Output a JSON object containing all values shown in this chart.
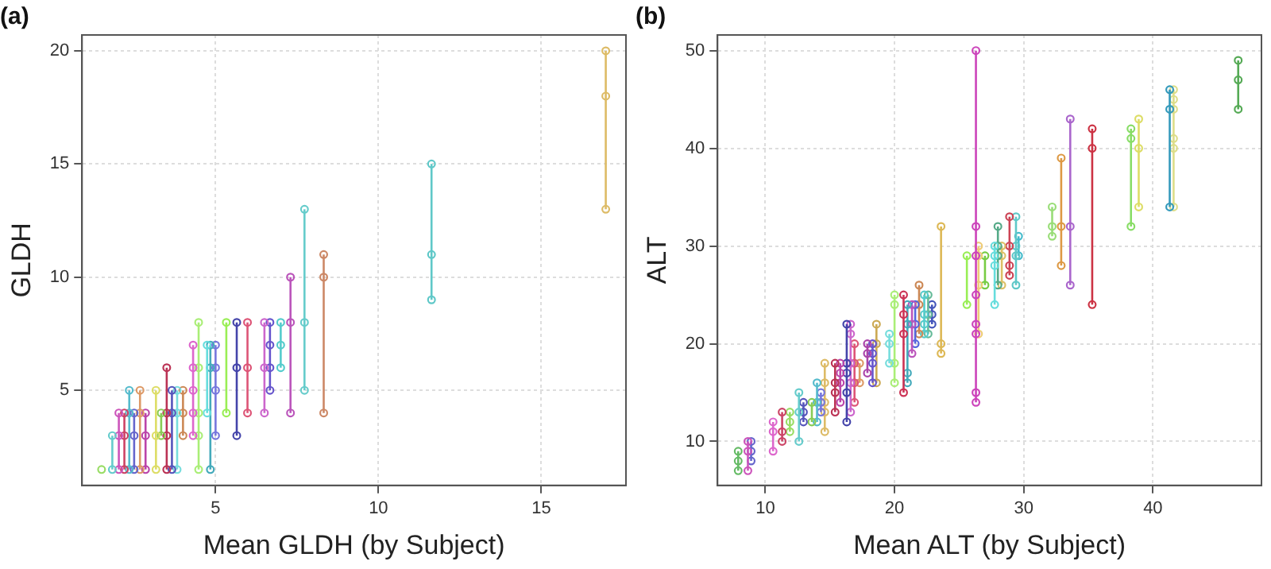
{
  "chart_data": [
    {
      "type": "line",
      "title": "(a)",
      "xlabel": "Mean GLDH (by Subject)",
      "ylabel": "GLDH",
      "xlim": [
        0.9,
        17.6
      ],
      "xticks": [
        5,
        10,
        15
      ],
      "ylim": [
        0.8,
        20.7
      ],
      "yticks": [
        5,
        10,
        15,
        20
      ],
      "grid": true,
      "marker": "circle",
      "line_style": "solid",
      "series": [
        {
          "color": "#99dd66",
          "x": [
            1.5
          ],
          "values": [
            1.5
          ]
        },
        {
          "color": "#66cccc",
          "x": [
            1.83,
            1.83
          ],
          "values": [
            1.5,
            3
          ]
        },
        {
          "color": "#cc55bb",
          "x": [
            2.03,
            2.03,
            2.03
          ],
          "values": [
            1.5,
            3,
            4
          ]
        },
        {
          "color": "#cc4466",
          "x": [
            2.2,
            2.2,
            2.2
          ],
          "values": [
            1.5,
            3,
            4
          ]
        },
        {
          "color": "#55bbcc",
          "x": [
            2.35,
            2.35,
            2.35
          ],
          "values": [
            1.5,
            4,
            5
          ]
        },
        {
          "color": "#6666cc",
          "x": [
            2.5,
            2.5,
            2.5
          ],
          "values": [
            1.5,
            3,
            4
          ]
        },
        {
          "color": "#dd9966",
          "x": [
            2.68,
            2.68,
            2.68
          ],
          "values": [
            1.5,
            4,
            5
          ]
        },
        {
          "color": "#bb44aa",
          "x": [
            2.85,
            2.85,
            2.85
          ],
          "values": [
            1.5,
            3,
            4
          ]
        },
        {
          "color": "#dddd66",
          "x": [
            3.17,
            3.17,
            3.17
          ],
          "values": [
            1.5,
            3,
            5
          ]
        },
        {
          "color": "#88cc55",
          "x": [
            3.33,
            3.33
          ],
          "values": [
            3,
            4
          ]
        },
        {
          "color": "#bb3355",
          "x": [
            3.5,
            3.5,
            3.5,
            3.5
          ],
          "values": [
            1.5,
            3,
            4,
            6
          ]
        },
        {
          "color": "#5555bb",
          "x": [
            3.66,
            3.66,
            3.66
          ],
          "values": [
            1.5,
            4,
            5
          ]
        },
        {
          "color": "#77dddd",
          "x": [
            3.82,
            3.82,
            3.82
          ],
          "values": [
            1.5,
            4,
            5
          ]
        },
        {
          "color": "#cc8855",
          "x": [
            4.0,
            4.0,
            4.0
          ],
          "values": [
            3,
            4,
            5
          ]
        },
        {
          "color": "#dd66cc",
          "x": [
            4.31,
            4.31,
            4.31,
            4.31,
            4.31
          ],
          "values": [
            3,
            4,
            5,
            6,
            7
          ]
        },
        {
          "color": "#aaee77",
          "x": [
            4.48,
            4.48,
            4.48,
            4.48,
            4.48
          ],
          "values": [
            1.5,
            3,
            4,
            6,
            8
          ]
        },
        {
          "color": "#66dddd",
          "x": [
            4.74,
            4.74
          ],
          "values": [
            4,
            7
          ]
        },
        {
          "color": "#44aabb",
          "x": [
            4.84,
            4.84,
            4.84
          ],
          "values": [
            1.5,
            6,
            7
          ]
        },
        {
          "color": "#7777dd",
          "x": [
            5.0,
            5.0,
            5.0,
            5.0
          ],
          "values": [
            3,
            5,
            6,
            7
          ]
        },
        {
          "color": "#99ee55",
          "x": [
            5.33,
            5.33
          ],
          "values": [
            4,
            8
          ]
        },
        {
          "color": "#4444aa",
          "x": [
            5.65,
            5.65,
            5.65
          ],
          "values": [
            3,
            6,
            8
          ]
        },
        {
          "color": "#dd5577",
          "x": [
            5.98,
            5.98,
            5.98
          ],
          "values": [
            4,
            6,
            8
          ]
        },
        {
          "color": "#cc66cc",
          "x": [
            6.5,
            6.5,
            6.5
          ],
          "values": [
            4,
            6,
            8
          ]
        },
        {
          "color": "#6655cc",
          "x": [
            6.67,
            6.67,
            6.67,
            6.67
          ],
          "values": [
            5,
            6,
            7,
            8
          ]
        },
        {
          "color": "#55cccc",
          "x": [
            7.0,
            7.0,
            7.0
          ],
          "values": [
            6,
            7,
            8
          ]
        },
        {
          "color": "#bb55bb",
          "x": [
            7.3,
            7.3,
            7.3
          ],
          "values": [
            4,
            8,
            10
          ]
        },
        {
          "color": "#66cccb",
          "x": [
            7.73,
            7.73,
            7.73
          ],
          "values": [
            5,
            8,
            13
          ]
        },
        {
          "color": "#cc8866",
          "x": [
            8.32,
            8.32,
            8.32
          ],
          "values": [
            4,
            10,
            11
          ]
        },
        {
          "color": "#5fc8c8",
          "x": [
            11.63,
            11.63,
            11.63
          ],
          "values": [
            9,
            11,
            15
          ]
        },
        {
          "color": "#ddbb66",
          "x": [
            16.98,
            16.98,
            16.98
          ],
          "values": [
            13,
            18,
            20
          ]
        }
      ]
    },
    {
      "type": "line",
      "title": "(b)",
      "xlabel": "Mean ALT (by Subject)",
      "ylabel": "ALT",
      "xlim": [
        6.3,
        48.4
      ],
      "xticks": [
        10,
        20,
        30,
        40
      ],
      "ylim": [
        5.5,
        51.6
      ],
      "yticks": [
        10,
        20,
        30,
        40,
        50
      ],
      "grid": true,
      "marker": "circle",
      "line_style": "solid",
      "series": [
        {
          "color": "#66bb66",
          "x": [
            7.9,
            7.9,
            7.9
          ],
          "values": [
            7,
            8,
            9
          ]
        },
        {
          "color": "#cc55bb",
          "x": [
            8.65,
            8.65,
            8.65
          ],
          "values": [
            7,
            9,
            10
          ]
        },
        {
          "color": "#6666cc",
          "x": [
            8.9,
            8.9,
            8.9
          ],
          "values": [
            8,
            9,
            10
          ]
        },
        {
          "color": "#dd66cc",
          "x": [
            10.6,
            10.6,
            10.6
          ],
          "values": [
            9,
            11,
            12
          ]
        },
        {
          "color": "#cc4466",
          "x": [
            11.3,
            11.3,
            11.3
          ],
          "values": [
            10,
            11,
            13
          ]
        },
        {
          "color": "#99dd66",
          "x": [
            11.9,
            11.9,
            11.9
          ],
          "values": [
            11,
            12,
            13
          ]
        },
        {
          "color": "#66cccc",
          "x": [
            12.6,
            12.6,
            12.6
          ],
          "values": [
            10,
            13,
            15
          ]
        },
        {
          "color": "#5555bb",
          "x": [
            12.95,
            12.95,
            12.95
          ],
          "values": [
            12,
            13,
            14
          ]
        },
        {
          "color": "#88cc55",
          "x": [
            13.6,
            13.6
          ],
          "values": [
            12,
            14
          ]
        },
        {
          "color": "#55bbcc",
          "x": [
            14.0,
            14.0,
            14.0
          ],
          "values": [
            12,
            14,
            16
          ]
        },
        {
          "color": "#7777dd",
          "x": [
            14.3,
            14.3,
            14.3
          ],
          "values": [
            13,
            14,
            15
          ]
        },
        {
          "color": "#ddbb66",
          "x": [
            14.6,
            14.6,
            14.6,
            14.6,
            14.6
          ],
          "values": [
            11,
            13,
            14,
            16,
            18
          ]
        },
        {
          "color": "#bb3355",
          "x": [
            15.4,
            15.4,
            15.4,
            15.4
          ],
          "values": [
            13,
            15,
            16,
            18
          ]
        },
        {
          "color": "#bb44aa",
          "x": [
            15.8,
            15.8,
            15.8,
            15.8
          ],
          "values": [
            14,
            16,
            17,
            18
          ]
        },
        {
          "color": "#4444aa",
          "x": [
            16.3,
            16.3,
            16.3,
            16.3,
            16.3
          ],
          "values": [
            12,
            15,
            17,
            18,
            22
          ]
        },
        {
          "color": "#cc66cc",
          "x": [
            16.6,
            16.6,
            16.6,
            16.6,
            16.6
          ],
          "values": [
            13,
            16,
            18,
            21,
            22
          ]
        },
        {
          "color": "#dd5577",
          "x": [
            16.9,
            16.9,
            16.9,
            16.9
          ],
          "values": [
            14,
            16,
            18,
            20
          ]
        },
        {
          "color": "#dd9966",
          "x": [
            17.3,
            17.3
          ],
          "values": [
            16,
            18
          ]
        },
        {
          "color": "#aa44aa",
          "x": [
            17.9,
            17.9,
            17.9
          ],
          "values": [
            17,
            19,
            20
          ]
        },
        {
          "color": "#6655cc",
          "x": [
            18.3,
            18.3,
            18.3,
            18.3
          ],
          "values": [
            16,
            18,
            19,
            20
          ]
        },
        {
          "color": "#ccaa55",
          "x": [
            18.6,
            18.6,
            18.6
          ],
          "values": [
            16,
            20,
            22
          ]
        },
        {
          "color": "#77dddd",
          "x": [
            19.6,
            19.6,
            19.6
          ],
          "values": [
            18,
            20,
            21
          ]
        },
        {
          "color": "#aaee77",
          "x": [
            20.0,
            20.0,
            20.0,
            20.0
          ],
          "values": [
            16,
            18,
            24,
            25
          ]
        },
        {
          "color": "#cc3355",
          "x": [
            20.7,
            20.7,
            20.7,
            20.7
          ],
          "values": [
            15,
            21,
            23,
            25
          ]
        },
        {
          "color": "#44aabb",
          "x": [
            21.0,
            21.0,
            21.0,
            21.0
          ],
          "values": [
            16,
            17,
            22,
            24
          ]
        },
        {
          "color": "#bb55bb",
          "x": [
            21.35,
            21.35,
            21.35
          ],
          "values": [
            19,
            22,
            24
          ]
        },
        {
          "color": "#5566dd",
          "x": [
            21.6,
            21.6,
            21.6
          ],
          "values": [
            20,
            22,
            24
          ]
        },
        {
          "color": "#cc8855",
          "x": [
            21.9,
            21.9,
            21.9
          ],
          "values": [
            21,
            24,
            26
          ]
        },
        {
          "color": "#55cccc",
          "x": [
            22.3,
            22.3,
            22.3,
            22.3
          ],
          "values": [
            21,
            22,
            23,
            25
          ]
        },
        {
          "color": "#66bb99",
          "x": [
            22.6,
            22.6,
            22.6
          ],
          "values": [
            21,
            23,
            25
          ]
        },
        {
          "color": "#4455bb",
          "x": [
            22.9,
            22.9,
            22.9
          ],
          "values": [
            22,
            23,
            24
          ]
        },
        {
          "color": "#ddb855",
          "x": [
            23.6,
            23.6,
            23.6
          ],
          "values": [
            19,
            20,
            32
          ]
        },
        {
          "color": "#99ee55",
          "x": [
            25.6,
            25.6
          ],
          "values": [
            24,
            29
          ]
        },
        {
          "color": "#cc44bb",
          "x": [
            26.3,
            26.3,
            26.3,
            26.3,
            26.3,
            26.3,
            26.3,
            26.3
          ],
          "values": [
            14,
            15,
            21,
            22,
            25,
            29,
            32,
            50
          ]
        },
        {
          "color": "#eecc77",
          "x": [
            26.5,
            26.5,
            26.5,
            26.5
          ],
          "values": [
            21,
            26,
            29,
            30
          ]
        },
        {
          "color": "#77cc44",
          "x": [
            27.0,
            27.0
          ],
          "values": [
            26,
            29
          ]
        },
        {
          "color": "#66dddd",
          "x": [
            27.75,
            27.75,
            27.75,
            27.75
          ],
          "values": [
            24,
            28,
            29,
            30
          ]
        },
        {
          "color": "#55aa88",
          "x": [
            28.0,
            28.0,
            28.0,
            28.0
          ],
          "values": [
            26,
            29,
            30,
            32
          ]
        },
        {
          "color": "#ddc066",
          "x": [
            28.3,
            28.3,
            28.3
          ],
          "values": [
            26,
            29,
            30
          ]
        },
        {
          "color": "#cc4455",
          "x": [
            28.9,
            28.9,
            28.9,
            28.9
          ],
          "values": [
            27,
            28,
            30,
            33
          ]
        },
        {
          "color": "#5fc8c8",
          "x": [
            29.4,
            29.4,
            29.4,
            29.4
          ],
          "values": [
            26,
            29,
            30,
            33
          ]
        },
        {
          "color": "#44bbcc",
          "x": [
            29.6,
            29.6
          ],
          "values": [
            29,
            31
          ]
        },
        {
          "color": "#99dd77",
          "x": [
            32.2,
            32.2,
            32.2
          ],
          "values": [
            31,
            32,
            34
          ]
        },
        {
          "color": "#dd9944",
          "x": [
            32.9,
            32.9,
            32.9
          ],
          "values": [
            28,
            32,
            39
          ]
        },
        {
          "color": "#aa66cc",
          "x": [
            33.6,
            33.6,
            33.6
          ],
          "values": [
            26,
            32,
            43
          ]
        },
        {
          "color": "#cc3344",
          "x": [
            35.3,
            35.3,
            35.3
          ],
          "values": [
            24,
            40,
            42
          ]
        },
        {
          "color": "#88dd66",
          "x": [
            38.3,
            38.3,
            38.3
          ],
          "values": [
            32,
            41,
            42
          ]
        },
        {
          "color": "#dddd66",
          "x": [
            38.9,
            38.9,
            38.9
          ],
          "values": [
            34,
            40,
            43
          ]
        },
        {
          "color": "#3399bb",
          "x": [
            41.3,
            41.3,
            41.3
          ],
          "values": [
            34,
            44,
            46
          ]
        },
        {
          "color": "#dddd88",
          "x": [
            41.6,
            41.6,
            41.6,
            41.6,
            41.6,
            41.6
          ],
          "values": [
            34,
            40,
            41,
            44,
            45,
            46
          ]
        },
        {
          "color": "#55aa55",
          "x": [
            46.6,
            46.6,
            46.6
          ],
          "values": [
            44,
            47,
            49
          ]
        }
      ]
    }
  ]
}
